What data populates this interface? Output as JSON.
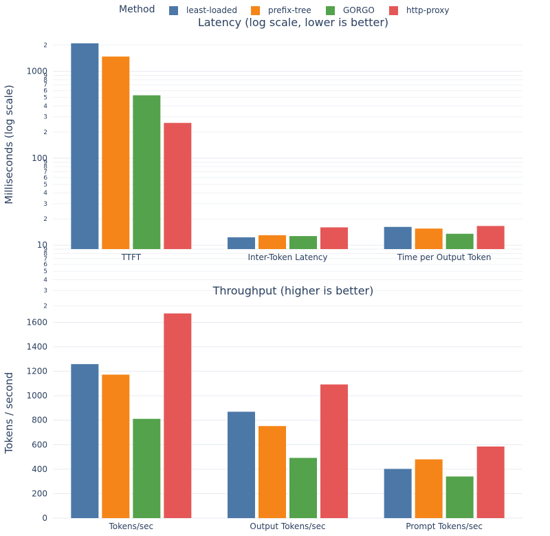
{
  "legend": {
    "title": "Method",
    "items": [
      {
        "name": "least-loaded",
        "color": "#4c78a8"
      },
      {
        "name": "prefix-tree",
        "color": "#f58518"
      },
      {
        "name": "GORGO",
        "color": "#54a24b"
      },
      {
        "name": "http-proxy",
        "color": "#e45756"
      }
    ]
  },
  "chart_data": [
    {
      "type": "bar",
      "title": "Latency (log scale, lower is better)",
      "ylabel": "Milliseconds (log scale)",
      "yscale": "log",
      "ylim": [
        9,
        2300
      ],
      "categories": [
        "TTFT",
        "Inter-Token Latency",
        "Time per Output Token"
      ],
      "series": [
        {
          "name": "least-loaded",
          "values": [
            2100,
            12.3,
            16.2
          ]
        },
        {
          "name": "prefix-tree",
          "values": [
            1480,
            13.0,
            15.5
          ]
        },
        {
          "name": "GORGO",
          "values": [
            530,
            12.7,
            13.5
          ]
        },
        {
          "name": "http-proxy",
          "values": [
            255,
            16.0,
            16.6
          ]
        }
      ],
      "yticks": [
        10,
        100,
        1000
      ],
      "minor_ticks": [
        2,
        3,
        4,
        5,
        6,
        7,
        8,
        9,
        20,
        30,
        40,
        50,
        60,
        70,
        80,
        90,
        200,
        300,
        400,
        500,
        600,
        700,
        800,
        900,
        2000
      ],
      "grid": true
    },
    {
      "type": "bar",
      "title": "Throughput (higher is better)",
      "ylabel": "Tokens / second",
      "ylim": [
        0,
        1720
      ],
      "categories": [
        "Tokens/sec",
        "Output Tokens/sec",
        "Prompt Tokens/sec"
      ],
      "series": [
        {
          "name": "least-loaded",
          "values": [
            1258,
            869,
            402
          ]
        },
        {
          "name": "prefix-tree",
          "values": [
            1172,
            752,
            480
          ]
        },
        {
          "name": "GORGO",
          "values": [
            811,
            492,
            340
          ]
        },
        {
          "name": "http-proxy",
          "values": [
            1672,
            1092,
            585
          ]
        }
      ],
      "yticks": [
        0,
        200,
        400,
        600,
        800,
        1000,
        1200,
        1400,
        1600
      ],
      "grid": true
    }
  ]
}
